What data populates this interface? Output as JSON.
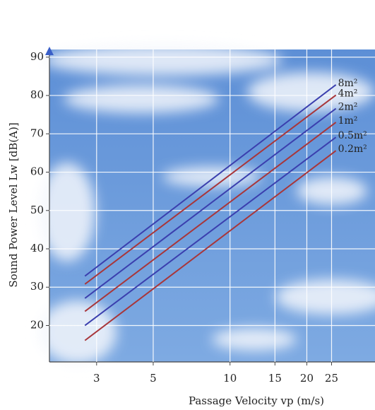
{
  "chart_data": {
    "type": "line",
    "x_label": "Passage Velocity vp (m/s)",
    "y_label": "Sound Power Level Lw [dB(A)]",
    "x_scale": "log",
    "xlim": [
      1.96,
      37
    ],
    "ylim": [
      10.5,
      92
    ],
    "xticks": [
      3,
      5,
      10,
      15,
      20,
      25
    ],
    "yticks": [
      20,
      30,
      40,
      50,
      60,
      70,
      80,
      90
    ],
    "grid": true,
    "x": [
      2.7,
      26
    ],
    "series": [
      {
        "name": "8m²",
        "color": "#3b3fae",
        "values": [
          32.9,
          82.8
        ]
      },
      {
        "name": "4m²",
        "color": "#a8363a",
        "values": [
          30.8,
          80.1
        ]
      },
      {
        "name": "2m²",
        "color": "#3b3fae",
        "values": [
          27.1,
          76.6
        ]
      },
      {
        "name": "1m²",
        "color": "#a8363a",
        "values": [
          23.7,
          73.0
        ]
      },
      {
        "name": "0.5m²",
        "color": "#3b3fae",
        "values": [
          20.0,
          69.1
        ]
      },
      {
        "name": "0.2m²",
        "color": "#a8363a",
        "values": [
          16.1,
          65.6
        ]
      }
    ]
  }
}
